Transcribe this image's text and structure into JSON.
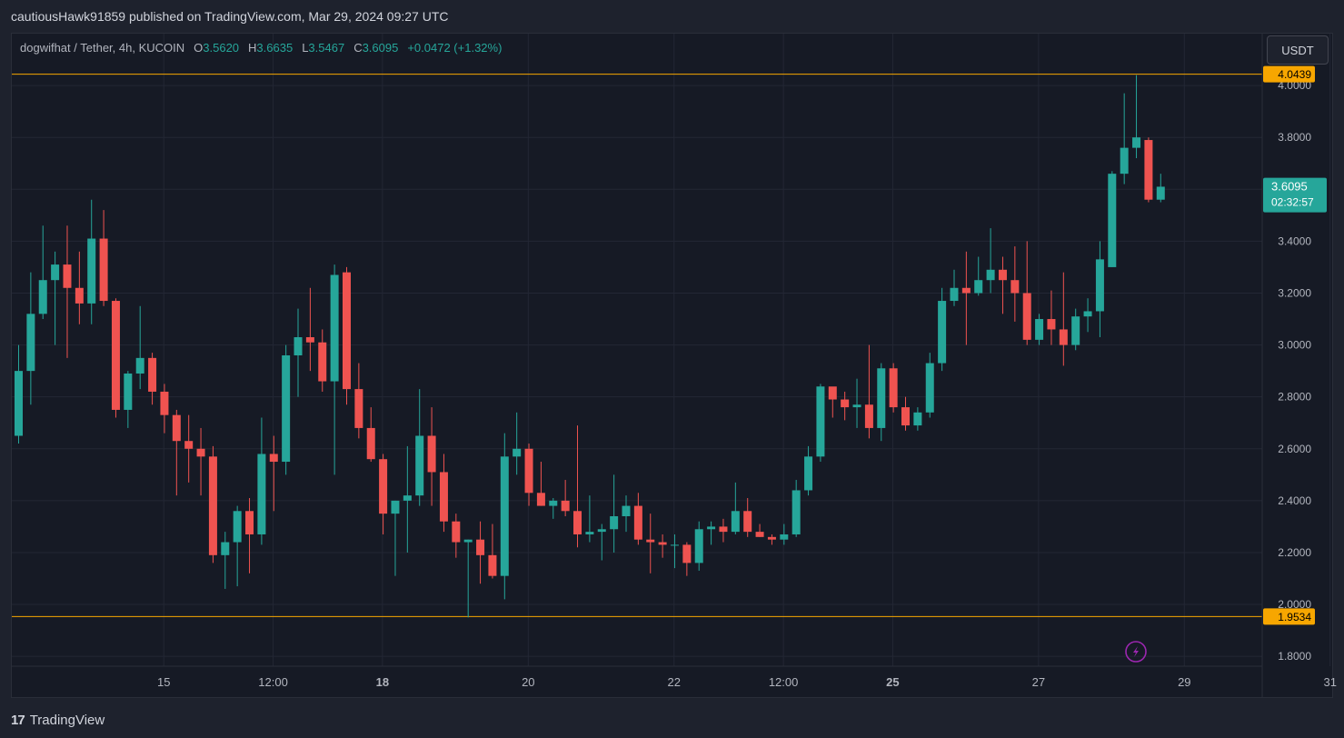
{
  "header": {
    "published_text": "cautiousHawk91859 published on TradingView.com, Mar 29, 2024 09:27 UTC"
  },
  "legend": {
    "symbol": "dogwifhat / Tether, 4h, KUCOIN",
    "open_label": "O",
    "open_value": "3.5620",
    "high_label": "H",
    "high_value": "3.6635",
    "low_label": "L",
    "low_value": "3.5467",
    "close_label": "C",
    "close_value": "3.6095",
    "change": "+0.0472 (+1.32%)"
  },
  "currency_button": "USDT",
  "footer": {
    "logo_mark": "17",
    "brand": "TradingView"
  },
  "colors": {
    "up": "#26a69a",
    "down": "#ef5350",
    "hline": "#f7a600",
    "background": "#161a25",
    "grid": "#232734",
    "axis_text": "#b2b5be"
  },
  "chart_data": {
    "type": "candlestick",
    "ylim": [
      1.75,
      4.17
    ],
    "y_ticks": [
      1.8,
      2.0,
      2.2,
      2.4,
      2.6,
      2.8,
      3.0,
      3.2,
      3.4,
      3.6,
      3.8,
      4.0
    ],
    "y_tick_labels": [
      "1.8000",
      "2.0000",
      "2.2000",
      "2.4000",
      "2.6000",
      "2.8000",
      "3.0000",
      "3.2000",
      "3.4000",
      "3.6000",
      "3.8000",
      "4.0000"
    ],
    "x_ticks": [
      {
        "label": "15",
        "bar": 6,
        "bold": false
      },
      {
        "label": "12:00",
        "bar": 15,
        "bold": false
      },
      {
        "label": "18",
        "bar": 24,
        "bold": true
      },
      {
        "label": "20",
        "bar": 36,
        "bold": false
      },
      {
        "label": "22",
        "bar": 48,
        "bold": false
      },
      {
        "label": "12:00",
        "bar": 57,
        "bold": false
      },
      {
        "label": "25",
        "bar": 66,
        "bold": true
      },
      {
        "label": "27",
        "bar": 78,
        "bold": false
      },
      {
        "label": "29",
        "bar": 90,
        "bold": false
      },
      {
        "label": "31",
        "bar": 102,
        "bold": false
      }
    ],
    "horizontal_lines": [
      {
        "value": 4.0439,
        "label": "4.0439"
      },
      {
        "value": 1.9534,
        "label": "1.9534"
      }
    ],
    "last_price": {
      "value": 3.6095,
      "label": "3.6095",
      "countdown": "02:32:57"
    },
    "candles": [
      [
        2.65,
        3.0,
        2.62,
        2.9
      ],
      [
        2.9,
        3.28,
        2.77,
        3.12
      ],
      [
        3.12,
        3.46,
        3.1,
        3.25
      ],
      [
        3.25,
        3.36,
        3.0,
        3.31
      ],
      [
        3.31,
        3.46,
        2.95,
        3.22
      ],
      [
        3.22,
        3.36,
        3.08,
        3.16
      ],
      [
        3.16,
        3.56,
        3.08,
        3.41
      ],
      [
        3.41,
        3.52,
        3.15,
        3.17
      ],
      [
        3.17,
        3.18,
        2.72,
        2.75
      ],
      [
        2.75,
        2.9,
        2.68,
        2.89
      ],
      [
        2.89,
        3.15,
        2.83,
        2.95
      ],
      [
        2.95,
        2.97,
        2.77,
        2.82
      ],
      [
        2.82,
        2.85,
        2.66,
        2.73
      ],
      [
        2.73,
        2.75,
        2.42,
        2.63
      ],
      [
        2.63,
        2.73,
        2.47,
        2.6
      ],
      [
        2.6,
        2.68,
        2.42,
        2.57
      ],
      [
        2.57,
        2.61,
        2.16,
        2.19
      ],
      [
        2.19,
        2.28,
        2.06,
        2.24
      ],
      [
        2.24,
        2.38,
        2.07,
        2.36
      ],
      [
        2.36,
        2.41,
        2.12,
        2.27
      ],
      [
        2.27,
        2.72,
        2.23,
        2.58
      ],
      [
        2.58,
        2.65,
        2.36,
        2.55
      ],
      [
        2.55,
        3.0,
        2.5,
        2.96
      ],
      [
        2.96,
        3.14,
        2.8,
        3.03
      ],
      [
        3.03,
        3.22,
        2.9,
        3.01
      ],
      [
        3.01,
        3.06,
        2.82,
        2.86
      ],
      [
        2.86,
        3.31,
        2.5,
        3.27
      ],
      [
        3.28,
        3.3,
        2.77,
        2.83
      ],
      [
        2.83,
        2.93,
        2.64,
        2.68
      ],
      [
        2.68,
        2.76,
        2.55,
        2.56
      ],
      [
        2.56,
        2.58,
        2.27,
        2.35
      ],
      [
        2.35,
        2.4,
        2.11,
        2.4
      ],
      [
        2.4,
        2.61,
        2.2,
        2.42
      ],
      [
        2.42,
        2.83,
        2.38,
        2.65
      ],
      [
        2.65,
        2.76,
        2.38,
        2.51
      ],
      [
        2.51,
        2.58,
        2.28,
        2.32
      ],
      [
        2.32,
        2.35,
        2.18,
        2.24
      ],
      [
        2.24,
        2.25,
        1.95,
        2.25
      ],
      [
        2.25,
        2.32,
        2.08,
        2.19
      ],
      [
        2.19,
        2.31,
        2.1,
        2.11
      ],
      [
        2.11,
        2.66,
        2.02,
        2.57
      ],
      [
        2.57,
        2.74,
        2.5,
        2.6
      ],
      [
        2.6,
        2.62,
        2.38,
        2.43
      ],
      [
        2.43,
        2.55,
        2.38,
        2.38
      ],
      [
        2.38,
        2.41,
        2.33,
        2.4
      ],
      [
        2.4,
        2.48,
        2.34,
        2.36
      ],
      [
        2.36,
        2.69,
        2.22,
        2.27
      ],
      [
        2.27,
        2.42,
        2.24,
        2.28
      ],
      [
        2.28,
        2.31,
        2.17,
        2.29
      ],
      [
        2.29,
        2.5,
        2.2,
        2.34
      ],
      [
        2.34,
        2.42,
        2.28,
        2.38
      ],
      [
        2.38,
        2.43,
        2.23,
        2.25
      ],
      [
        2.25,
        2.35,
        2.12,
        2.24
      ],
      [
        2.24,
        2.27,
        2.18,
        2.23
      ],
      [
        2.23,
        2.27,
        2.14,
        2.23
      ],
      [
        2.23,
        2.24,
        2.11,
        2.16
      ],
      [
        2.16,
        2.32,
        2.13,
        2.29
      ],
      [
        2.29,
        2.32,
        2.23,
        2.3
      ],
      [
        2.3,
        2.33,
        2.24,
        2.28
      ],
      [
        2.28,
        2.47,
        2.27,
        2.36
      ],
      [
        2.36,
        2.41,
        2.26,
        2.28
      ],
      [
        2.28,
        2.31,
        2.26,
        2.26
      ],
      [
        2.26,
        2.27,
        2.23,
        2.25
      ],
      [
        2.25,
        2.31,
        2.23,
        2.27
      ],
      [
        2.27,
        2.48,
        2.26,
        2.44
      ],
      [
        2.44,
        2.61,
        2.42,
        2.57
      ],
      [
        2.57,
        2.85,
        2.55,
        2.84
      ],
      [
        2.84,
        2.83,
        2.72,
        2.79
      ],
      [
        2.79,
        2.82,
        2.71,
        2.76
      ],
      [
        2.76,
        2.87,
        2.68,
        2.77
      ],
      [
        2.77,
        3.0,
        2.64,
        2.68
      ],
      [
        2.68,
        2.93,
        2.63,
        2.91
      ],
      [
        2.91,
        2.93,
        2.74,
        2.76
      ],
      [
        2.76,
        2.8,
        2.67,
        2.69
      ],
      [
        2.69,
        2.76,
        2.67,
        2.74
      ],
      [
        2.74,
        2.97,
        2.72,
        2.93
      ],
      [
        2.93,
        3.22,
        2.9,
        3.17
      ],
      [
        3.17,
        3.29,
        3.15,
        3.22
      ],
      [
        3.22,
        3.36,
        3.0,
        3.2
      ],
      [
        3.2,
        3.34,
        3.19,
        3.25
      ],
      [
        3.25,
        3.45,
        3.2,
        3.29
      ],
      [
        3.29,
        3.34,
        3.12,
        3.25
      ],
      [
        3.25,
        3.38,
        3.09,
        3.2
      ],
      [
        3.2,
        3.4,
        3.0,
        3.02
      ],
      [
        3.02,
        3.12,
        3.0,
        3.1
      ],
      [
        3.1,
        3.21,
        3.0,
        3.06
      ],
      [
        3.06,
        3.28,
        2.92,
        3.0
      ],
      [
        3.0,
        3.14,
        2.98,
        3.11
      ],
      [
        3.11,
        3.18,
        3.05,
        3.13
      ],
      [
        3.13,
        3.4,
        3.03,
        3.33
      ],
      [
        3.3,
        3.67,
        3.3,
        3.66
      ],
      [
        3.66,
        3.97,
        3.62,
        3.76
      ],
      [
        3.76,
        4.04,
        3.72,
        3.8
      ],
      [
        3.79,
        3.8,
        3.55,
        3.56
      ],
      [
        3.56,
        3.66,
        3.55,
        3.61
      ]
    ]
  }
}
